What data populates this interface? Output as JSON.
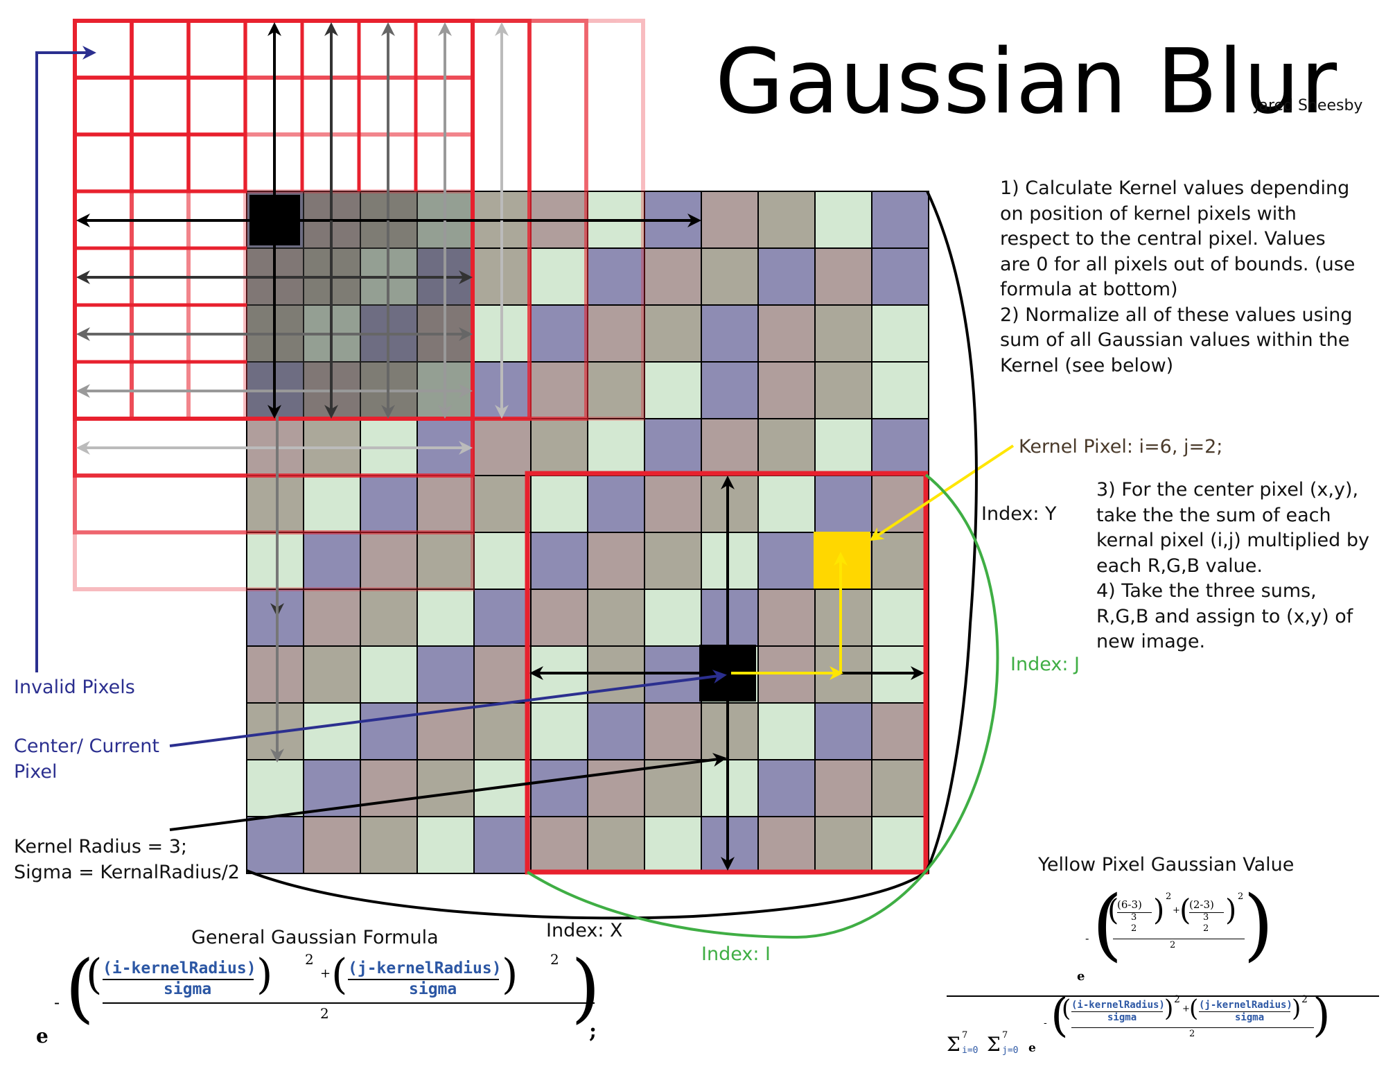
{
  "title": "Gaussian Blur",
  "author": "Jared Sneesby",
  "steps_top": [
    "1) Calculate Kernel values depending on position of kernel pixels with respect to the central pixel.  Values are 0 for all pixels out of bounds. (use formula at bottom)",
    "2) Normalize all of these values using sum of all Gaussian values within the Kernel (see below)"
  ],
  "steps_bottom": [
    "3) For the center pixel (x,y), take the the sum of each kernal pixel (i,j) multiplied by each R,G,B value.",
    "4) Take the three sums, R,G,B and assign to (x,y) of new image."
  ],
  "labels": {
    "invalid_pixels": "Invalid Pixels",
    "center_pixel": "Center/ Current Pixel",
    "kernel_radius": "Kernel Radius = 3;",
    "sigma": "Sigma = KernalRadius/2",
    "kernel_pixel": "Kernel Pixel: i=6, j=2;",
    "index_y": "Index: Y",
    "index_x": "Index: X",
    "index_j": "Index: J",
    "index_i": "Index: I",
    "general_formula": "General Gaussian Formula",
    "yellow_value": "Yellow Pixel Gaussian Value"
  },
  "formula_general": {
    "e": "e",
    "minus": "-",
    "num_i": "(i-kernelRadius)",
    "num_j": "(j-kernelRadius)",
    "den": "sigma",
    "plus": "+",
    "exp": "2",
    "half": "2",
    "semicolon": ";"
  },
  "formula_yellow": {
    "num_a": "(6-3)",
    "num_b": "(2-3)",
    "frac_top": "3",
    "frac_bot": "2",
    "half": "2",
    "exp": "2",
    "sum_i": "Σ",
    "sum_i_top": "7",
    "sum_i_bot": "i=0",
    "sum_j": "Σ",
    "sum_j_top": "7",
    "sum_j_bot": "j=0"
  },
  "colors": {
    "kernel_red": "#e8212e",
    "arrow_blue": "#2b2f8f",
    "arrow_yellow": "#ffe600",
    "highlight_yellow": "#ffd700",
    "green_curve": "#3fae44",
    "cell_colors": [
      "#8e8cb3",
      "#b09e9c",
      "#aba89a",
      "#d3e8d2"
    ]
  },
  "grid": {
    "rows": 12,
    "cols": 12,
    "pattern": [
      [
        0,
        1,
        2,
        3,
        2,
        1,
        3,
        0,
        1,
        2,
        3,
        0
      ],
      [
        1,
        2,
        3,
        0,
        2,
        3,
        0,
        1,
        2,
        0,
        1,
        0
      ],
      [
        2,
        3,
        0,
        1,
        3,
        0,
        1,
        2,
        0,
        1,
        2,
        3
      ],
      [
        0,
        1,
        2,
        3,
        0,
        1,
        2,
        3,
        0,
        1,
        2,
        3
      ],
      [
        1,
        2,
        3,
        0,
        1,
        2,
        3,
        0,
        1,
        2,
        3,
        0
      ],
      [
        2,
        3,
        0,
        1,
        2,
        3,
        0,
        1,
        2,
        3,
        0,
        1
      ],
      [
        3,
        0,
        1,
        2,
        3,
        0,
        1,
        2,
        3,
        0,
        1,
        2
      ],
      [
        0,
        1,
        2,
        3,
        0,
        1,
        2,
        3,
        0,
        1,
        2,
        3
      ],
      [
        1,
        2,
        3,
        0,
        1,
        3,
        2,
        0,
        3,
        1,
        2,
        3
      ],
      [
        2,
        3,
        0,
        1,
        2,
        3,
        0,
        1,
        2,
        3,
        0,
        1
      ],
      [
        3,
        0,
        1,
        2,
        3,
        0,
        1,
        2,
        3,
        0,
        1,
        2
      ],
      [
        0,
        1,
        2,
        3,
        0,
        1,
        2,
        3,
        0,
        1,
        2,
        3
      ]
    ],
    "center_cell": [
      8,
      8
    ],
    "corner_cell": [
      0,
      0
    ],
    "yellow_cell": [
      6,
      10
    ]
  }
}
